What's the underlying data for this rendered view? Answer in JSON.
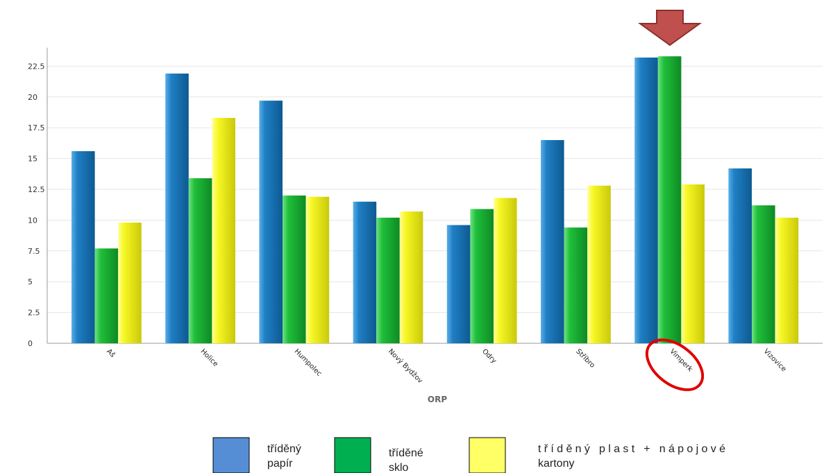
{
  "chart_data": {
    "type": "bar",
    "title": "",
    "xlabel": "ORP",
    "ylabel": "",
    "ylim": [
      0,
      24
    ],
    "yticks": [
      0,
      2.5,
      5,
      7.5,
      10,
      12.5,
      15,
      17.5,
      20,
      22.5
    ],
    "grid": true,
    "legend_position": "bottom",
    "categories": [
      "Aš",
      "Holice",
      "Humpolec",
      "Nový Bydžov",
      "Odry",
      "Stříbro",
      "Vimperk",
      "Vizovice"
    ],
    "series": [
      {
        "name": "tříděný papír",
        "color": "#1f7fc4",
        "values": [
          15.6,
          21.9,
          19.7,
          11.5,
          9.6,
          16.5,
          23.2,
          14.2
        ]
      },
      {
        "name": "tříděné sklo",
        "color": "#1fbf3a",
        "values": [
          7.7,
          13.4,
          12.0,
          10.2,
          10.9,
          9.4,
          23.3,
          11.2
        ]
      },
      {
        "name": "tříděný plast + nápojové kartony",
        "color": "#f2f21e",
        "values": [
          9.8,
          18.3,
          11.9,
          10.7,
          11.8,
          12.8,
          12.9,
          10.2
        ]
      }
    ],
    "highlight": {
      "category": "Vimperk",
      "marker": "arrow-and-ellipse",
      "arrow_color": "#c0504d",
      "ellipse_color": "#e00000"
    }
  },
  "legend": {
    "items": [
      {
        "label_lines": [
          "tříděný",
          "papír"
        ],
        "swatch": "#558ed5"
      },
      {
        "label_lines": [
          "tříděné",
          "sklo"
        ],
        "swatch": "#00b050"
      },
      {
        "label_lines": [
          "tříděný plast + nápojové",
          "kartony"
        ],
        "swatch": "#ffff66"
      }
    ]
  }
}
